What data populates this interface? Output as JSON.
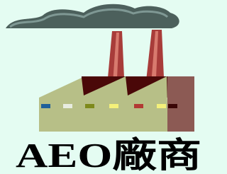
{
  "logo": {
    "text": "AEO廠商"
  }
}
